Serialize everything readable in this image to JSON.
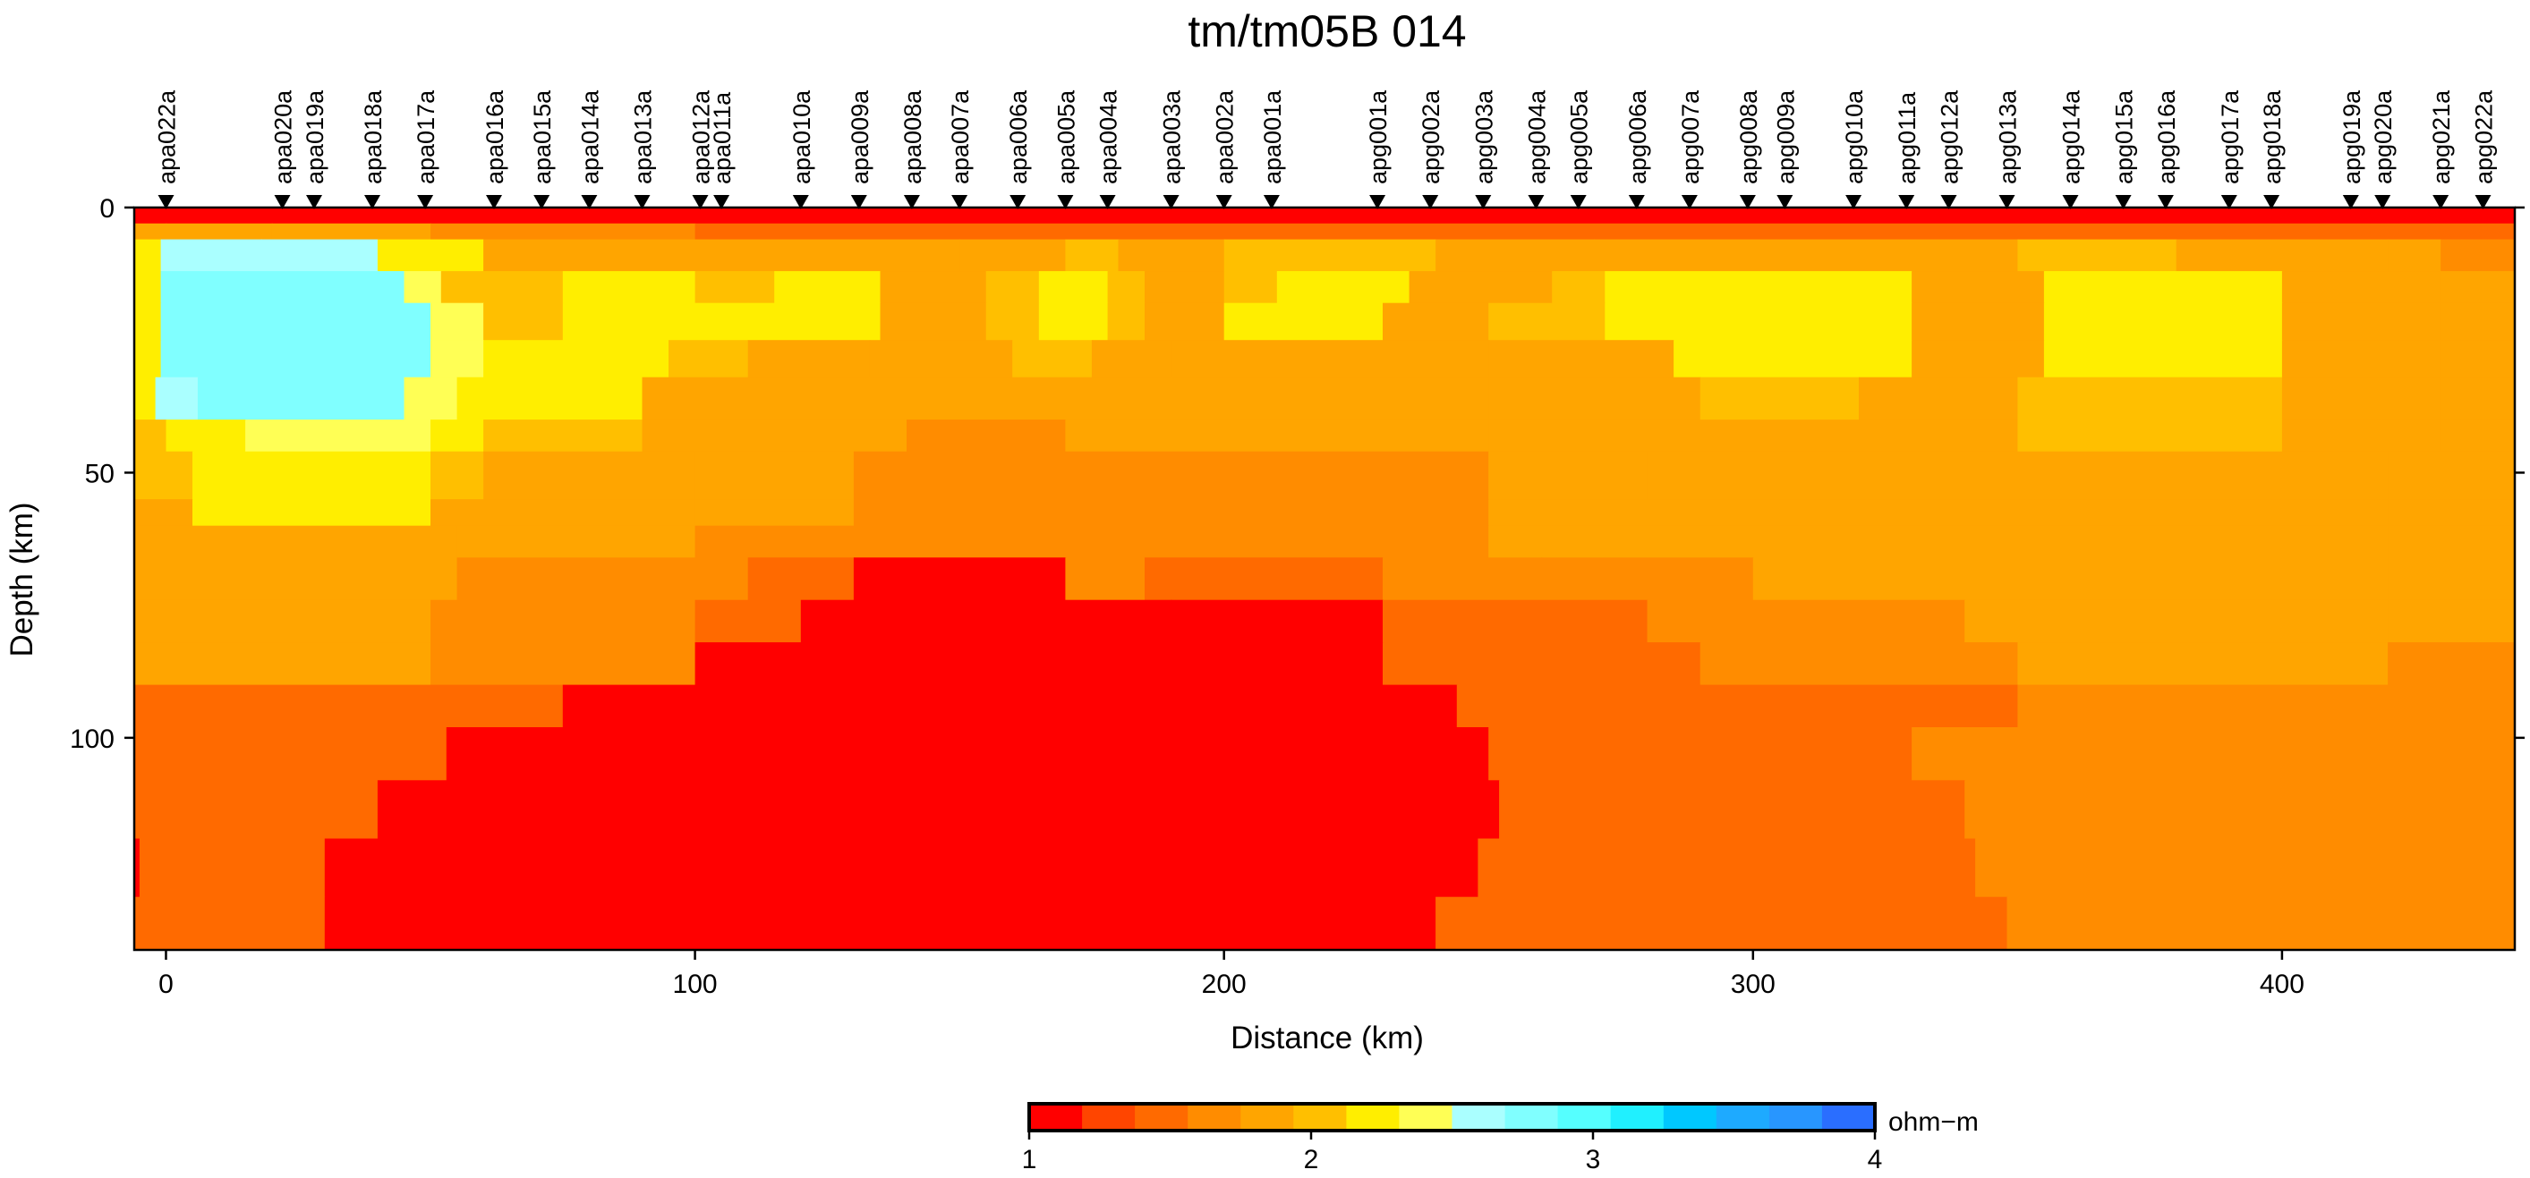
{
  "chart_data": {
    "type": "heatmap",
    "title": "tm/tm05B 014",
    "xlabel": "Distance (km)",
    "ylabel": "Depth (km)",
    "xlim": [
      -6,
      444
    ],
    "ylim": [
      0,
      140
    ],
    "x_ticks": [
      0,
      100,
      200,
      300,
      400
    ],
    "y_ticks": [
      0,
      50,
      100
    ],
    "colorbar": {
      "unit": "ohm−m",
      "range": [
        1,
        4
      ],
      "ticks": [
        1,
        2,
        3,
        4
      ],
      "colors": [
        "#ff0000",
        "#ff4500",
        "#ff6a00",
        "#ff8c00",
        "#ffa500",
        "#ffbf00",
        "#ffee00",
        "#ffff55",
        "#aaffff",
        "#80ffff",
        "#55ffff",
        "#20f0ff",
        "#00c8ff",
        "#1eaaff",
        "#2896ff",
        "#2a6eff"
      ]
    },
    "stations": [
      {
        "name": "apa022a",
        "x": 0
      },
      {
        "name": "apa020a",
        "x": 22
      },
      {
        "name": "apa019a",
        "x": 28
      },
      {
        "name": "apa018a",
        "x": 39
      },
      {
        "name": "apa017a",
        "x": 49
      },
      {
        "name": "apa016a",
        "x": 62
      },
      {
        "name": "apa015a",
        "x": 71
      },
      {
        "name": "apa014a",
        "x": 80
      },
      {
        "name": "apa013a",
        "x": 90
      },
      {
        "name": "apa012a",
        "x": 101
      },
      {
        "name": "apa011a",
        "x": 105
      },
      {
        "name": "apa010a",
        "x": 120
      },
      {
        "name": "apa009a",
        "x": 131
      },
      {
        "name": "apa008a",
        "x": 141
      },
      {
        "name": "apa007a",
        "x": 150
      },
      {
        "name": "apa006a",
        "x": 161
      },
      {
        "name": "apa005a",
        "x": 170
      },
      {
        "name": "apa004a",
        "x": 178
      },
      {
        "name": "apa003a",
        "x": 190
      },
      {
        "name": "apa002a",
        "x": 200
      },
      {
        "name": "apa001a",
        "x": 209
      },
      {
        "name": "apg001a",
        "x": 229
      },
      {
        "name": "apg002a",
        "x": 239
      },
      {
        "name": "apg003a",
        "x": 249
      },
      {
        "name": "apg004a",
        "x": 259
      },
      {
        "name": "apg005a",
        "x": 267
      },
      {
        "name": "apg006a",
        "x": 278
      },
      {
        "name": "apg007a",
        "x": 288
      },
      {
        "name": "apg008a",
        "x": 299
      },
      {
        "name": "apg009a",
        "x": 306
      },
      {
        "name": "apg010a",
        "x": 319
      },
      {
        "name": "apg011a",
        "x": 329
      },
      {
        "name": "apg012a",
        "x": 337
      },
      {
        "name": "apg013a",
        "x": 348
      },
      {
        "name": "apg014a",
        "x": 360
      },
      {
        "name": "apg015a",
        "x": 370
      },
      {
        "name": "apg016a",
        "x": 378
      },
      {
        "name": "apg017a",
        "x": 390
      },
      {
        "name": "apg018a",
        "x": 398
      },
      {
        "name": "apg019a",
        "x": 413
      },
      {
        "name": "apg020a",
        "x": 419
      },
      {
        "name": "apg021a",
        "x": 430
      },
      {
        "name": "apg022a",
        "x": 438
      }
    ],
    "layers": [
      {
        "ztop": 0,
        "zbot": 3,
        "values": [
          [
            -6,
            444,
            1.1
          ]
        ]
      },
      {
        "ztop": 3,
        "zbot": 6,
        "values": [
          [
            -6,
            0,
            1.8
          ],
          [
            0,
            20,
            1.9
          ],
          [
            20,
            50,
            1.8
          ],
          [
            50,
            100,
            1.6
          ],
          [
            100,
            444,
            1.5
          ]
        ]
      },
      {
        "ztop": 6,
        "zbot": 12,
        "values": [
          [
            -6,
            -1,
            2.2
          ],
          [
            -1,
            18,
            2.5
          ],
          [
            18,
            40,
            2.6
          ],
          [
            40,
            60,
            2.3
          ],
          [
            60,
            80,
            1.9
          ],
          [
            80,
            150,
            1.8
          ],
          [
            150,
            170,
            1.9
          ],
          [
            170,
            180,
            2.1
          ],
          [
            180,
            200,
            1.9
          ],
          [
            200,
            240,
            2.0
          ],
          [
            240,
            270,
            1.8
          ],
          [
            270,
            350,
            1.9
          ],
          [
            350,
            380,
            2.0
          ],
          [
            380,
            420,
            1.9
          ],
          [
            420,
            430,
            1.8
          ],
          [
            430,
            444,
            1.7
          ]
        ]
      },
      {
        "ztop": 12,
        "zbot": 18,
        "values": [
          [
            -6,
            -1,
            2.3
          ],
          [
            -1,
            45,
            2.7
          ],
          [
            45,
            52,
            2.4
          ],
          [
            52,
            75,
            2.1
          ],
          [
            75,
            100,
            2.3
          ],
          [
            100,
            115,
            2.1
          ],
          [
            115,
            135,
            2.2
          ],
          [
            135,
            155,
            1.9
          ],
          [
            155,
            165,
            2.1
          ],
          [
            165,
            178,
            2.3
          ],
          [
            178,
            185,
            2.1
          ],
          [
            185,
            200,
            1.9
          ],
          [
            200,
            210,
            2.1
          ],
          [
            210,
            235,
            2.2
          ],
          [
            235,
            262,
            1.9
          ],
          [
            262,
            272,
            2.0
          ],
          [
            272,
            330,
            2.2
          ],
          [
            330,
            355,
            1.9
          ],
          [
            355,
            400,
            2.2
          ],
          [
            400,
            430,
            1.9
          ],
          [
            430,
            444,
            1.8
          ]
        ]
      },
      {
        "ztop": 18,
        "zbot": 25,
        "values": [
          [
            -6,
            -1,
            2.3
          ],
          [
            -1,
            50,
            2.7
          ],
          [
            50,
            60,
            2.4
          ],
          [
            60,
            75,
            2.1
          ],
          [
            75,
            100,
            2.3
          ],
          [
            100,
            110,
            2.2
          ],
          [
            110,
            135,
            2.2
          ],
          [
            135,
            155,
            1.9
          ],
          [
            155,
            165,
            2.1
          ],
          [
            165,
            178,
            2.3
          ],
          [
            178,
            185,
            2.1
          ],
          [
            185,
            200,
            1.9
          ],
          [
            200,
            230,
            2.2
          ],
          [
            230,
            250,
            1.9
          ],
          [
            250,
            272,
            2.1
          ],
          [
            272,
            330,
            2.2
          ],
          [
            330,
            355,
            1.9
          ],
          [
            355,
            400,
            2.2
          ],
          [
            400,
            430,
            1.9
          ],
          [
            430,
            444,
            1.8
          ]
        ]
      },
      {
        "ztop": 25,
        "zbot": 32,
        "values": [
          [
            -6,
            -1,
            2.3
          ],
          [
            -1,
            50,
            2.7
          ],
          [
            50,
            60,
            2.4
          ],
          [
            60,
            95,
            2.2
          ],
          [
            95,
            110,
            2.1
          ],
          [
            110,
            133,
            1.9
          ],
          [
            133,
            160,
            1.9
          ],
          [
            160,
            175,
            2.1
          ],
          [
            175,
            190,
            1.9
          ],
          [
            190,
            250,
            1.9
          ],
          [
            250,
            285,
            1.9
          ],
          [
            285,
            330,
            2.2
          ],
          [
            330,
            355,
            1.9
          ],
          [
            355,
            400,
            2.2
          ],
          [
            400,
            430,
            1.9
          ],
          [
            430,
            444,
            1.8
          ]
        ]
      },
      {
        "ztop": 32,
        "zbot": 40,
        "values": [
          [
            -6,
            -2,
            2.2
          ],
          [
            -2,
            6,
            2.6
          ],
          [
            6,
            45,
            2.7
          ],
          [
            45,
            55,
            2.4
          ],
          [
            55,
            90,
            2.2
          ],
          [
            90,
            130,
            1.9
          ],
          [
            130,
            250,
            1.8
          ],
          [
            250,
            290,
            1.9
          ],
          [
            290,
            320,
            2.1
          ],
          [
            320,
            350,
            1.9
          ],
          [
            350,
            400,
            2.1
          ],
          [
            400,
            430,
            1.9
          ],
          [
            430,
            444,
            1.8
          ]
        ]
      },
      {
        "ztop": 40,
        "zbot": 46,
        "values": [
          [
            -6,
            0,
            2.1
          ],
          [
            0,
            15,
            2.3
          ],
          [
            15,
            50,
            2.4
          ],
          [
            50,
            60,
            2.2
          ],
          [
            60,
            90,
            2.1
          ],
          [
            90,
            140,
            1.8
          ],
          [
            140,
            170,
            1.6
          ],
          [
            170,
            250,
            1.8
          ],
          [
            250,
            350,
            1.9
          ],
          [
            350,
            400,
            2.0
          ],
          [
            400,
            430,
            1.9
          ],
          [
            430,
            444,
            1.8
          ]
        ]
      },
      {
        "ztop": 46,
        "zbot": 55,
        "values": [
          [
            -6,
            5,
            2.0
          ],
          [
            5,
            50,
            2.2
          ],
          [
            50,
            60,
            2.1
          ],
          [
            60,
            100,
            1.9
          ],
          [
            100,
            130,
            1.8
          ],
          [
            130,
            250,
            1.6
          ],
          [
            250,
            280,
            1.8
          ],
          [
            280,
            350,
            1.9
          ],
          [
            350,
            420,
            1.9
          ],
          [
            420,
            444,
            1.8
          ]
        ]
      },
      {
        "ztop": 55,
        "zbot": 60,
        "values": [
          [
            -6,
            5,
            1.9
          ],
          [
            5,
            50,
            2.2
          ],
          [
            50,
            100,
            1.9
          ],
          [
            100,
            130,
            1.8
          ],
          [
            130,
            250,
            1.6
          ],
          [
            250,
            350,
            1.8
          ],
          [
            350,
            420,
            1.9
          ],
          [
            420,
            444,
            1.8
          ]
        ]
      },
      {
        "ztop": 60,
        "zbot": 66,
        "values": [
          [
            -6,
            55,
            1.9
          ],
          [
            55,
            100,
            1.8
          ],
          [
            100,
            140,
            1.6
          ],
          [
            140,
            250,
            1.6
          ],
          [
            250,
            350,
            1.8
          ],
          [
            350,
            420,
            1.9
          ],
          [
            420,
            444,
            1.8
          ]
        ]
      },
      {
        "ztop": 66,
        "zbot": 74,
        "values": [
          [
            -6,
            55,
            1.9
          ],
          [
            55,
            110,
            1.6
          ],
          [
            110,
            130,
            1.5
          ],
          [
            130,
            170,
            1.1
          ],
          [
            170,
            185,
            1.6
          ],
          [
            185,
            230,
            1.5
          ],
          [
            230,
            260,
            1.6
          ],
          [
            260,
            300,
            1.6
          ],
          [
            300,
            350,
            1.8
          ],
          [
            350,
            420,
            1.8
          ],
          [
            420,
            444,
            1.8
          ]
        ]
      },
      {
        "ztop": 74,
        "zbot": 82,
        "values": [
          [
            -6,
            50,
            1.8
          ],
          [
            50,
            100,
            1.6
          ],
          [
            100,
            120,
            1.5
          ],
          [
            120,
            190,
            1.1
          ],
          [
            190,
            230,
            1.1
          ],
          [
            230,
            280,
            1.5
          ],
          [
            280,
            340,
            1.6
          ],
          [
            340,
            420,
            1.8
          ],
          [
            420,
            444,
            1.8
          ]
        ]
      },
      {
        "ztop": 82,
        "zbot": 90,
        "values": [
          [
            -6,
            50,
            1.8
          ],
          [
            50,
            100,
            1.6
          ],
          [
            100,
            230,
            1.1
          ],
          [
            230,
            290,
            1.5
          ],
          [
            290,
            350,
            1.6
          ],
          [
            350,
            420,
            1.8
          ],
          [
            420,
            444,
            1.6
          ]
        ]
      },
      {
        "ztop": 90,
        "zbot": 98,
        "values": [
          [
            -6,
            75,
            1.5
          ],
          [
            75,
            244,
            1.1
          ],
          [
            244,
            290,
            1.5
          ],
          [
            290,
            350,
            1.5
          ],
          [
            350,
            444,
            1.6
          ]
        ]
      },
      {
        "ztop": 98,
        "zbot": 108,
        "values": [
          [
            -6,
            53,
            1.5
          ],
          [
            53,
            250,
            1.1
          ],
          [
            250,
            330,
            1.5
          ],
          [
            330,
            444,
            1.6
          ]
        ]
      },
      {
        "ztop": 108,
        "zbot": 119,
        "values": [
          [
            -6,
            40,
            1.5
          ],
          [
            40,
            252,
            1.1
          ],
          [
            252,
            340,
            1.5
          ],
          [
            340,
            444,
            1.6
          ]
        ]
      },
      {
        "ztop": 119,
        "zbot": 130,
        "values": [
          [
            -6,
            -5,
            1.1
          ],
          [
            -5,
            30,
            1.5
          ],
          [
            30,
            248,
            1.1
          ],
          [
            248,
            342,
            1.5
          ],
          [
            342,
            444,
            1.6
          ]
        ]
      },
      {
        "ztop": 130,
        "zbot": 140,
        "values": [
          [
            -6,
            30,
            1.5
          ],
          [
            30,
            240,
            1.1
          ],
          [
            240,
            348,
            1.5
          ],
          [
            348,
            444,
            1.6
          ]
        ]
      }
    ]
  }
}
